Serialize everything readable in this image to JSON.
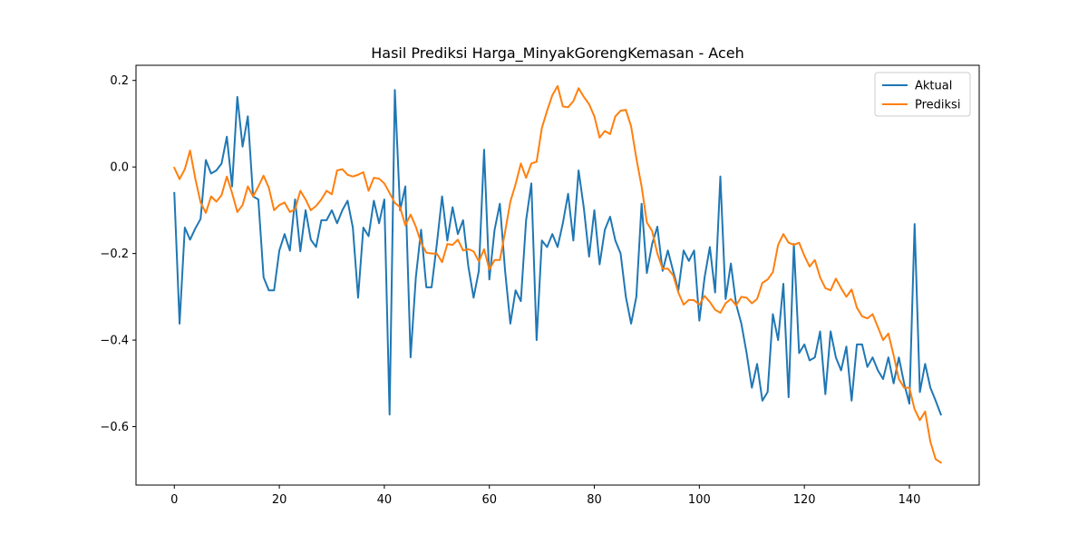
{
  "chart_data": {
    "type": "line",
    "title": "Hasil Prediksi Harga_MinyakGorengKemasan - Aceh",
    "xlabel": "",
    "ylabel": "",
    "xlim": [
      -7.3,
      153.3
    ],
    "ylim": [
      -0.735,
      0.235
    ],
    "xticks": [
      0,
      20,
      40,
      60,
      80,
      100,
      120,
      140
    ],
    "yticks": [
      -0.6,
      -0.4,
      -0.2,
      0.0,
      0.2
    ],
    "xtick_labels": [
      "0",
      "20",
      "40",
      "60",
      "80",
      "100",
      "120",
      "140"
    ],
    "ytick_labels": [
      "−0.6",
      "−0.4",
      "−0.2",
      "0.0",
      "0.2"
    ],
    "grid": false,
    "legend_position": "top-right",
    "series": [
      {
        "name": "Aktual",
        "color": "#1f77b4",
        "values": [
          -0.06,
          -0.362,
          -0.14,
          -0.168,
          -0.142,
          -0.12,
          0.016,
          -0.015,
          -0.008,
          0.008,
          0.07,
          -0.045,
          0.162,
          0.047,
          0.117,
          -0.068,
          -0.075,
          -0.255,
          -0.285,
          -0.285,
          -0.193,
          -0.155,
          -0.193,
          -0.075,
          -0.195,
          -0.1,
          -0.168,
          -0.185,
          -0.123,
          -0.123,
          -0.1,
          -0.13,
          -0.1,
          -0.078,
          -0.14,
          -0.302,
          -0.14,
          -0.16,
          -0.078,
          -0.13,
          -0.075,
          -0.572,
          0.178,
          -0.1,
          -0.045,
          -0.44,
          -0.255,
          -0.145,
          -0.278,
          -0.278,
          -0.178,
          -0.068,
          -0.17,
          -0.093,
          -0.155,
          -0.123,
          -0.23,
          -0.302,
          -0.24,
          0.04,
          -0.26,
          -0.145,
          -0.085,
          -0.24,
          -0.362,
          -0.285,
          -0.31,
          -0.123,
          -0.038,
          -0.4,
          -0.17,
          -0.185,
          -0.155,
          -0.185,
          -0.13,
          -0.062,
          -0.17,
          -0.008,
          -0.095,
          -0.207,
          -0.1,
          -0.225,
          -0.145,
          -0.115,
          -0.17,
          -0.2,
          -0.3,
          -0.362,
          -0.3,
          -0.085,
          -0.245,
          -0.178,
          -0.138,
          -0.24,
          -0.193,
          -0.24,
          -0.285,
          -0.193,
          -0.217,
          -0.193,
          -0.355,
          -0.255,
          -0.185,
          -0.29,
          -0.022,
          -0.305,
          -0.223,
          -0.317,
          -0.362,
          -0.43,
          -0.51,
          -0.455,
          -0.54,
          -0.52,
          -0.34,
          -0.4,
          -0.27,
          -0.532,
          -0.178,
          -0.43,
          -0.41,
          -0.447,
          -0.44,
          -0.38,
          -0.525,
          -0.38,
          -0.44,
          -0.47,
          -0.415,
          -0.54,
          -0.41,
          -0.41,
          -0.462,
          -0.44,
          -0.47,
          -0.49,
          -0.44,
          -0.5,
          -0.44,
          -0.5,
          -0.547,
          -0.132,
          -0.52,
          -0.455,
          -0.51,
          -0.54,
          -0.572
        ]
      },
      {
        "name": "Prediksi",
        "color": "#ff7f0e",
        "values": [
          -0.002,
          -0.028,
          -0.005,
          0.038,
          -0.027,
          -0.082,
          -0.106,
          -0.068,
          -0.08,
          -0.065,
          -0.022,
          -0.06,
          -0.104,
          -0.088,
          -0.045,
          -0.068,
          -0.045,
          -0.02,
          -0.048,
          -0.1,
          -0.088,
          -0.082,
          -0.104,
          -0.098,
          -0.055,
          -0.075,
          -0.1,
          -0.09,
          -0.075,
          -0.055,
          -0.063,
          -0.008,
          -0.005,
          -0.018,
          -0.022,
          -0.018,
          -0.012,
          -0.055,
          -0.025,
          -0.027,
          -0.038,
          -0.06,
          -0.083,
          -0.093,
          -0.135,
          -0.11,
          -0.138,
          -0.175,
          -0.198,
          -0.2,
          -0.2,
          -0.22,
          -0.178,
          -0.18,
          -0.168,
          -0.193,
          -0.19,
          -0.195,
          -0.218,
          -0.19,
          -0.237,
          -0.215,
          -0.215,
          -0.15,
          -0.08,
          -0.04,
          0.008,
          -0.025,
          0.008,
          0.012,
          0.09,
          0.13,
          0.166,
          0.187,
          0.14,
          0.138,
          0.152,
          0.182,
          0.162,
          0.145,
          0.117,
          0.068,
          0.083,
          0.076,
          0.117,
          0.13,
          0.132,
          0.094,
          0.02,
          -0.045,
          -0.128,
          -0.148,
          -0.2,
          -0.235,
          -0.235,
          -0.25,
          -0.29,
          -0.318,
          -0.307,
          -0.308,
          -0.318,
          -0.298,
          -0.312,
          -0.33,
          -0.337,
          -0.315,
          -0.305,
          -0.32,
          -0.3,
          -0.302,
          -0.315,
          -0.305,
          -0.268,
          -0.26,
          -0.243,
          -0.18,
          -0.155,
          -0.175,
          -0.18,
          -0.175,
          -0.205,
          -0.23,
          -0.215,
          -0.255,
          -0.28,
          -0.285,
          -0.258,
          -0.28,
          -0.3,
          -0.283,
          -0.325,
          -0.345,
          -0.35,
          -0.34,
          -0.37,
          -0.4,
          -0.385,
          -0.435,
          -0.49,
          -0.51,
          -0.51,
          -0.56,
          -0.585,
          -0.565,
          -0.635,
          -0.675,
          -0.683
        ]
      }
    ]
  }
}
